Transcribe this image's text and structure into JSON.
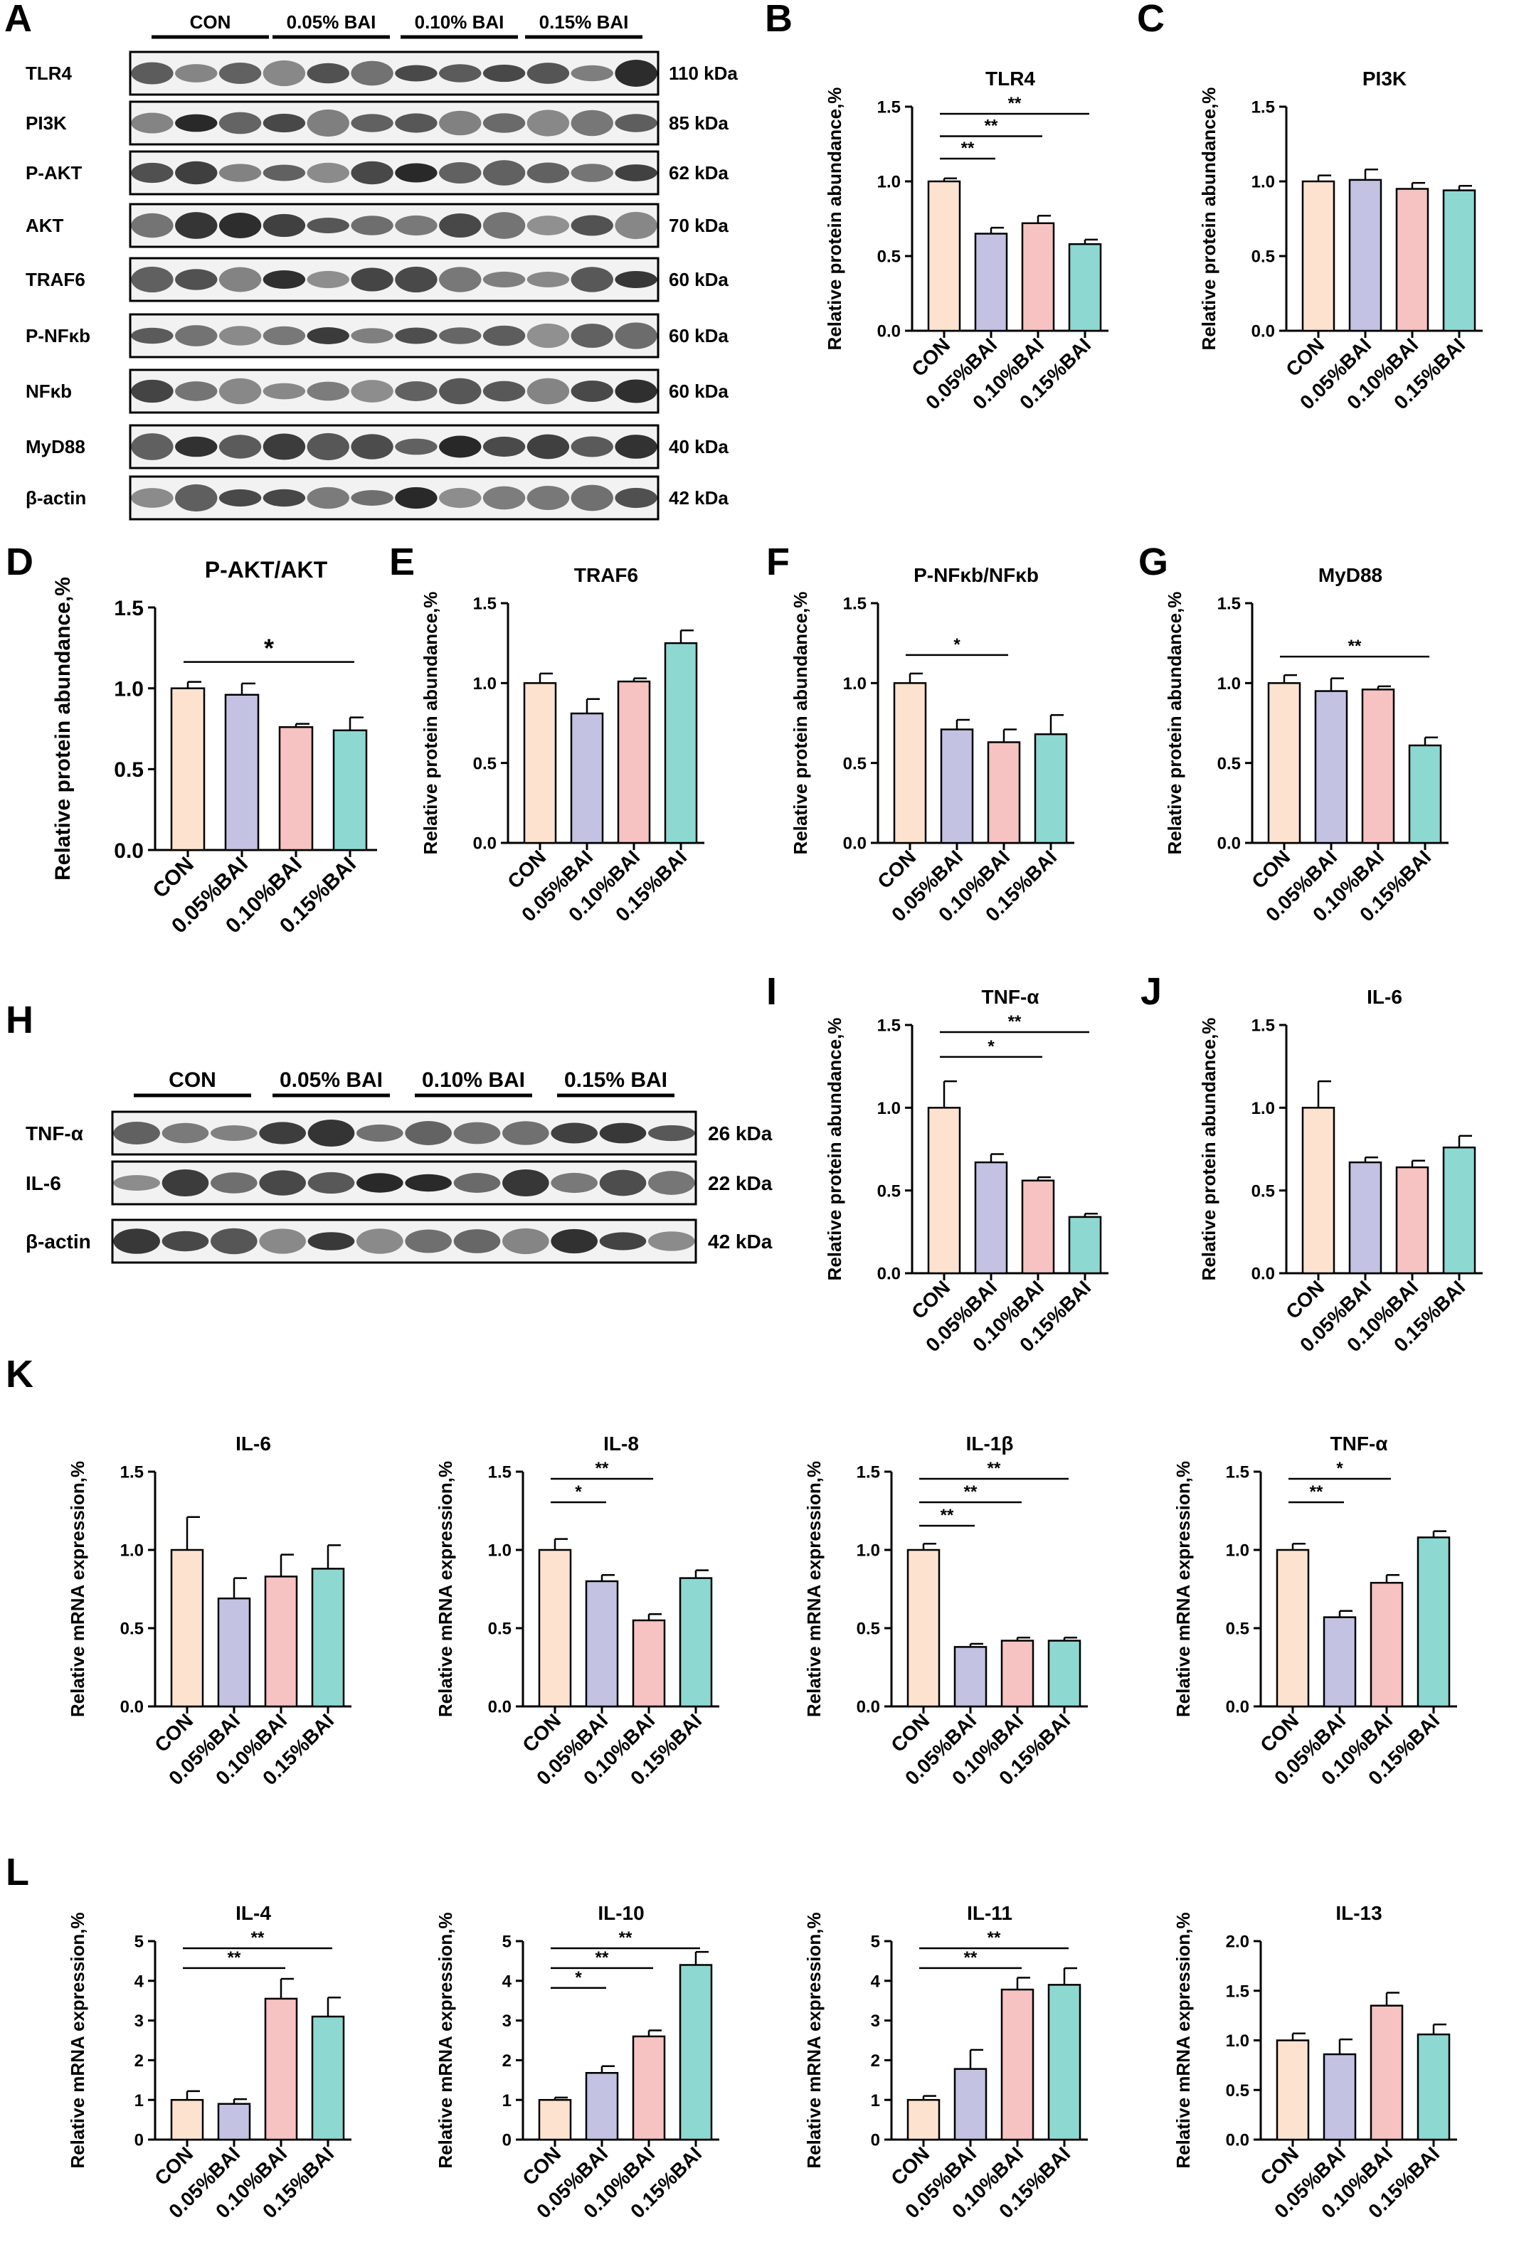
{
  "colors": {
    "CON": "#fde3cf",
    "0.05%BAI": "#c3c2e3",
    "0.10%BAI": "#f7c2c2",
    "0.15%BAI": "#8dd9d2",
    "axis": "#000000",
    "blot_background": "#f2f2f2",
    "band": "#1a1a1a"
  },
  "panel_letters": [
    "A",
    "B",
    "C",
    "D",
    "E",
    "F",
    "G",
    "H",
    "I",
    "J",
    "K",
    "L"
  ],
  "western_blot_A": {
    "letter": "A",
    "groups": [
      "CON",
      "0.05% BAI",
      "0.10% BAI",
      "0.15% BAI"
    ],
    "rows": [
      {
        "protein": "TLR4",
        "size": "110 kDa"
      },
      {
        "protein": "PI3K",
        "size": "85 kDa"
      },
      {
        "protein": "P-AKT",
        "size": "62 kDa"
      },
      {
        "protein": "AKT",
        "size": "70 kDa"
      },
      {
        "protein": "TRAF6",
        "size": "60 kDa"
      },
      {
        "protein": "P-NFκb",
        "size": "60 kDa"
      },
      {
        "protein": "NFκb",
        "size": "60 kDa"
      },
      {
        "protein": "MyD88",
        "size": "40 kDa"
      },
      {
        "protein": "β-actin",
        "size": "42 kDa"
      }
    ]
  },
  "western_blot_H": {
    "letter": "H",
    "groups": [
      "CON",
      "0.05% BAI",
      "0.10% BAI",
      "0.15% BAI"
    ],
    "rows": [
      {
        "protein": "TNF-α",
        "size": "26 kDa"
      },
      {
        "protein": "IL-6",
        "size": "22 kDa"
      },
      {
        "protein": "β-actin",
        "size": "42 kDa"
      }
    ]
  },
  "chart_data": [
    {
      "panel": "B",
      "type": "bar",
      "title": "TLR4",
      "ylabel": "Relative protein abundance,%",
      "categories": [
        "CON",
        "0.05%BAI",
        "0.10%BAI",
        "0.15%BAI"
      ],
      "values": [
        1.0,
        0.65,
        0.72,
        0.58
      ],
      "errors": [
        0.02,
        0.04,
        0.05,
        0.03
      ],
      "ylim": [
        0,
        1.5
      ],
      "yticks": [
        "0.0",
        "0.5",
        "1.0",
        "1.5"
      ],
      "significance": [
        {
          "from": 0,
          "to": 1,
          "label": "**"
        },
        {
          "from": 0,
          "to": 2,
          "label": "**"
        },
        {
          "from": 0,
          "to": 3,
          "label": "**"
        }
      ]
    },
    {
      "panel": "C",
      "type": "bar",
      "title": "PI3K",
      "ylabel": "Relative protein abundance,%",
      "categories": [
        "CON",
        "0.05%BAI",
        "0.10%BAI",
        "0.15%BAI"
      ],
      "values": [
        1.0,
        1.01,
        0.95,
        0.94
      ],
      "errors": [
        0.04,
        0.07,
        0.04,
        0.03
      ],
      "ylim": [
        0,
        1.5
      ],
      "yticks": [
        "0.0",
        "0.5",
        "1.0",
        "1.5"
      ],
      "significance": []
    },
    {
      "panel": "D",
      "type": "bar",
      "title": "P-AKT/AKT",
      "ylabel": "Relative protein abundance,%",
      "categories": [
        "CON",
        "0.05%BAI",
        "0.10%BAI",
        "0.15%BAI"
      ],
      "values": [
        1.0,
        0.96,
        0.76,
        0.74
      ],
      "errors": [
        0.04,
        0.07,
        0.02,
        0.08
      ],
      "ylim": [
        0,
        1.5
      ],
      "yticks": [
        "0.0",
        "0.5",
        "1.0",
        "1.5"
      ],
      "significance": [
        {
          "from": 0,
          "to": 3,
          "label": "*"
        }
      ]
    },
    {
      "panel": "E",
      "type": "bar",
      "title": "TRAF6",
      "ylabel": "Relative protein abundance,%",
      "categories": [
        "CON",
        "0.05%BAI",
        "0.10%BAI",
        "0.15%BAI"
      ],
      "values": [
        1.0,
        0.81,
        1.01,
        1.25
      ],
      "errors": [
        0.06,
        0.09,
        0.02,
        0.08
      ],
      "ylim": [
        0,
        1.5
      ],
      "yticks": [
        "0.0",
        "0.5",
        "1.0",
        "1.5"
      ],
      "significance": []
    },
    {
      "panel": "F",
      "type": "bar",
      "title": "P-NFκb/NFκb",
      "ylabel": "Relative protein abundance,%",
      "categories": [
        "CON",
        "0.05%BAI",
        "0.10%BAI",
        "0.15%BAI"
      ],
      "values": [
        1.0,
        0.71,
        0.63,
        0.68
      ],
      "errors": [
        0.06,
        0.06,
        0.08,
        0.12
      ],
      "ylim": [
        0,
        1.5
      ],
      "yticks": [
        "0.0",
        "0.5",
        "1.0",
        "1.5"
      ],
      "significance": [
        {
          "from": 0,
          "to": 2,
          "label": "*"
        }
      ]
    },
    {
      "panel": "G",
      "type": "bar",
      "title": "MyD88",
      "ylabel": "Relative protein abundance,%",
      "categories": [
        "CON",
        "0.05%BAI",
        "0.10%BAI",
        "0.15%BAI"
      ],
      "values": [
        1.0,
        0.95,
        0.96,
        0.61
      ],
      "errors": [
        0.05,
        0.08,
        0.02,
        0.05
      ],
      "ylim": [
        0,
        1.5
      ],
      "yticks": [
        "0.0",
        "0.5",
        "1.0",
        "1.5"
      ],
      "significance": [
        {
          "from": 0,
          "to": 3,
          "label": "**"
        }
      ]
    },
    {
      "panel": "I",
      "type": "bar",
      "title": "TNF-α",
      "ylabel": "Relative protein abundance,%",
      "categories": [
        "CON",
        "0.05%BAI",
        "0.10%BAI",
        "0.15%BAI"
      ],
      "values": [
        1.0,
        0.67,
        0.56,
        0.34
      ],
      "errors": [
        0.16,
        0.05,
        0.02,
        0.02
      ],
      "ylim": [
        0,
        1.5
      ],
      "yticks": [
        "0.0",
        "0.5",
        "1.0",
        "1.5"
      ],
      "significance": [
        {
          "from": 0,
          "to": 2,
          "label": "*"
        },
        {
          "from": 0,
          "to": 3,
          "label": "**"
        }
      ]
    },
    {
      "panel": "J",
      "type": "bar",
      "title": "IL-6",
      "ylabel": "Relative protein abundance,%",
      "categories": [
        "CON",
        "0.05%BAI",
        "0.10%BAI",
        "0.15%BAI"
      ],
      "values": [
        1.0,
        0.67,
        0.64,
        0.76
      ],
      "errors": [
        0.16,
        0.03,
        0.04,
        0.07
      ],
      "ylim": [
        0,
        1.5
      ],
      "yticks": [
        "0.0",
        "0.5",
        "1.0",
        "1.5"
      ],
      "significance": []
    },
    {
      "panel": "K1",
      "type": "bar",
      "title": "IL-6",
      "ylabel": "Relative mRNA expression,%",
      "categories": [
        "CON",
        "0.05%BAI",
        "0.10%BAI",
        "0.15%BAI"
      ],
      "values": [
        1.0,
        0.69,
        0.83,
        0.88
      ],
      "errors": [
        0.21,
        0.13,
        0.14,
        0.15
      ],
      "ylim": [
        0,
        1.5
      ],
      "yticks": [
        "0.0",
        "0.5",
        "1.0",
        "1.5"
      ],
      "significance": []
    },
    {
      "panel": "K2",
      "type": "bar",
      "title": "IL-8",
      "ylabel": "Relative mRNA expression,%",
      "categories": [
        "CON",
        "0.05%BAI",
        "0.10%BAI",
        "0.15%BAI"
      ],
      "values": [
        1.0,
        0.8,
        0.55,
        0.82
      ],
      "errors": [
        0.07,
        0.04,
        0.04,
        0.05
      ],
      "ylim": [
        0,
        1.5
      ],
      "yticks": [
        "0.0",
        "0.5",
        "1.0",
        "1.5"
      ],
      "significance": [
        {
          "from": 0,
          "to": 1,
          "label": "*"
        },
        {
          "from": 0,
          "to": 2,
          "label": "**"
        }
      ]
    },
    {
      "panel": "K3",
      "type": "bar",
      "title": "IL-1β",
      "ylabel": "Relative mRNA expression,%",
      "categories": [
        "CON",
        "0.05%BAI",
        "0.10%BAI",
        "0.15%BAI"
      ],
      "values": [
        1.0,
        0.38,
        0.42,
        0.42
      ],
      "errors": [
        0.04,
        0.02,
        0.02,
        0.02
      ],
      "ylim": [
        0,
        1.5
      ],
      "yticks": [
        "0.0",
        "0.5",
        "1.0",
        "1.5"
      ],
      "significance": [
        {
          "from": 0,
          "to": 1,
          "label": "**"
        },
        {
          "from": 0,
          "to": 2,
          "label": "**"
        },
        {
          "from": 0,
          "to": 3,
          "label": "**"
        }
      ]
    },
    {
      "panel": "K4",
      "type": "bar",
      "title": "TNF-α",
      "ylabel": "Relative mRNA expression,%",
      "categories": [
        "CON",
        "0.05%BAI",
        "0.10%BAI",
        "0.15%BAI"
      ],
      "values": [
        1.0,
        0.57,
        0.79,
        1.08
      ],
      "errors": [
        0.04,
        0.04,
        0.05,
        0.04
      ],
      "ylim": [
        0,
        1.5
      ],
      "yticks": [
        "0.0",
        "0.5",
        "1.0",
        "1.5"
      ],
      "significance": [
        {
          "from": 0,
          "to": 1,
          "label": "**"
        },
        {
          "from": 0,
          "to": 2,
          "label": "*"
        }
      ]
    },
    {
      "panel": "L1",
      "type": "bar",
      "title": "IL-4",
      "ylabel": "Relative mRNA expression,%",
      "categories": [
        "CON",
        "0.05%BAI",
        "0.10%BAI",
        "0.15%BAI"
      ],
      "values": [
        1.0,
        0.9,
        3.55,
        3.1
      ],
      "errors": [
        0.22,
        0.12,
        0.5,
        0.48
      ],
      "ylim": [
        0,
        5
      ],
      "yticks": [
        "0",
        "1",
        "2",
        "3",
        "4",
        "5"
      ],
      "significance": [
        {
          "from": 0,
          "to": 2,
          "label": "**"
        },
        {
          "from": 0,
          "to": 3,
          "label": "**"
        }
      ]
    },
    {
      "panel": "L2",
      "type": "bar",
      "title": "IL-10",
      "ylabel": "Relative mRNA expression,%",
      "categories": [
        "CON",
        "0.05%BAI",
        "0.10%BAI",
        "0.15%BAI"
      ],
      "values": [
        1.0,
        1.68,
        2.6,
        4.4
      ],
      "errors": [
        0.06,
        0.17,
        0.15,
        0.33
      ],
      "ylim": [
        0,
        5
      ],
      "yticks": [
        "0",
        "1",
        "2",
        "3",
        "4",
        "5"
      ],
      "significance": [
        {
          "from": 0,
          "to": 1,
          "label": "*"
        },
        {
          "from": 0,
          "to": 2,
          "label": "**"
        },
        {
          "from": 0,
          "to": 3,
          "label": "**"
        }
      ]
    },
    {
      "panel": "L3",
      "type": "bar",
      "title": "IL-11",
      "ylabel": "Relative mRNA expression,%",
      "categories": [
        "CON",
        "0.05%BAI",
        "0.10%BAI",
        "0.15%BAI"
      ],
      "values": [
        1.0,
        1.78,
        3.78,
        3.9
      ],
      "errors": [
        0.1,
        0.48,
        0.3,
        0.42
      ],
      "ylim": [
        0,
        5
      ],
      "yticks": [
        "0",
        "1",
        "2",
        "3",
        "4",
        "5"
      ],
      "significance": [
        {
          "from": 0,
          "to": 2,
          "label": "**"
        },
        {
          "from": 0,
          "to": 3,
          "label": "**"
        }
      ]
    },
    {
      "panel": "L4",
      "type": "bar",
      "title": "IL-13",
      "ylabel": "Relative mRNA expression,%",
      "categories": [
        "CON",
        "0.05%BAI",
        "0.10%BAI",
        "0.15%BAI"
      ],
      "values": [
        1.0,
        0.86,
        1.35,
        1.06
      ],
      "errors": [
        0.07,
        0.15,
        0.13,
        0.1
      ],
      "ylim": [
        0,
        2.0
      ],
      "yticks": [
        "0.0",
        "0.5",
        "1.0",
        "1.5",
        "2.0"
      ],
      "significance": []
    }
  ]
}
